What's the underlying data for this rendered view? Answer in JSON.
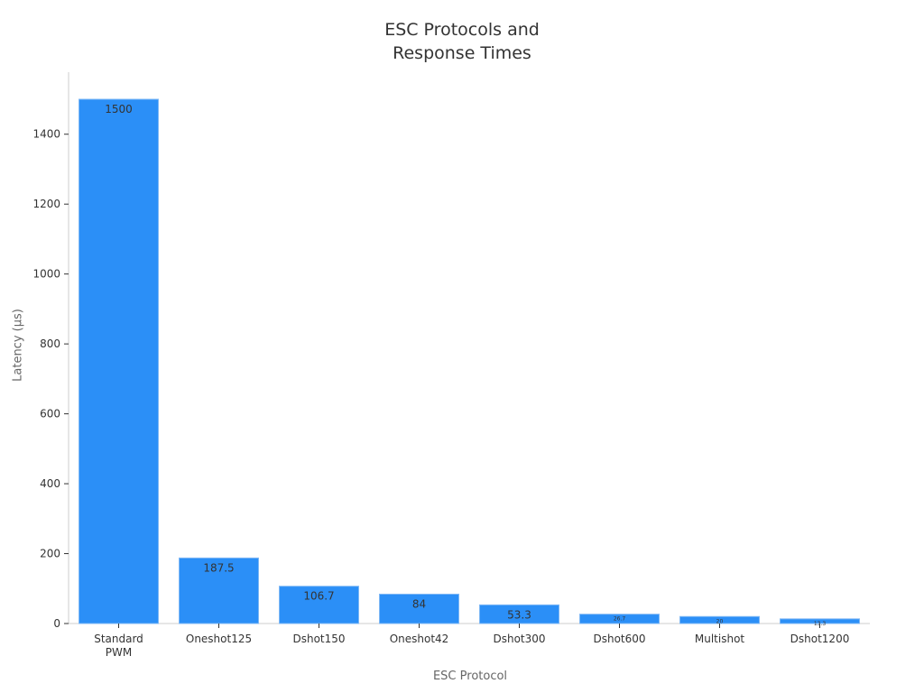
{
  "chart_data": {
    "type": "bar",
    "title": "ESC Protocols and Response Times",
    "title_lines": [
      "ESC Protocols and",
      "Response Times"
    ],
    "xlabel": "ESC Protocol",
    "ylabel": "Latency (µs)",
    "categories": [
      "Standard PWM",
      "Oneshot125",
      "Dshot150",
      "Oneshot42",
      "Dshot300",
      "Dshot600",
      "Multishot",
      "Dshot1200"
    ],
    "category_lines": [
      [
        "Standard",
        "PWM"
      ],
      [
        "Oneshot125"
      ],
      [
        "Dshot150"
      ],
      [
        "Oneshot42"
      ],
      [
        "Dshot300"
      ],
      [
        "Dshot600"
      ],
      [
        "Multishot"
      ],
      [
        "Dshot1200"
      ]
    ],
    "values": [
      1500,
      187.5,
      106.7,
      84,
      53.3,
      26.7,
      20,
      13.3
    ],
    "labels": [
      "1500",
      "187.5",
      "106.7",
      "84",
      "53.3",
      "26.7",
      "20",
      "13.3"
    ],
    "ylim": [
      0,
      1580
    ],
    "yticks": [
      0,
      200,
      400,
      600,
      800,
      1000,
      1200,
      1400
    ],
    "grid": false,
    "bar_color": "#2b8ff7"
  }
}
